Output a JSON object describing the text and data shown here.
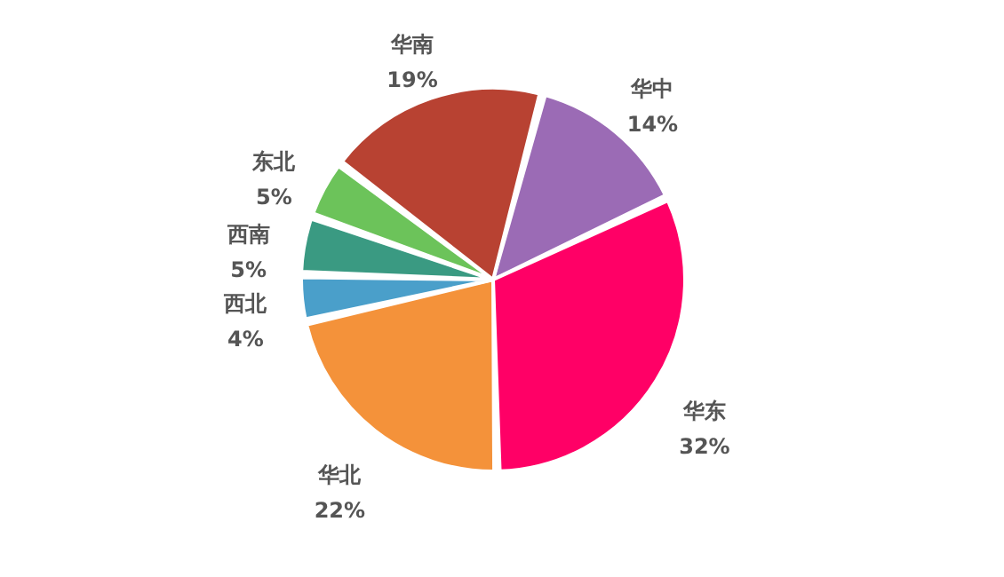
{
  "chart_data": {
    "type": "pie",
    "categories": [
      "华中",
      "华东",
      "华北",
      "西北",
      "西南",
      "东北",
      "华南"
    ],
    "values": [
      14,
      32,
      22,
      4,
      5,
      5,
      19
    ],
    "value_labels": [
      "14%",
      "32%",
      "22%",
      "4%",
      "5%",
      "5%",
      "19%"
    ],
    "colors": [
      "#9b6bb5",
      "#ff0066",
      "#f4923a",
      "#4a9fca",
      "#3a9a82",
      "#6cc35a",
      "#b84232"
    ],
    "legend": false
  }
}
